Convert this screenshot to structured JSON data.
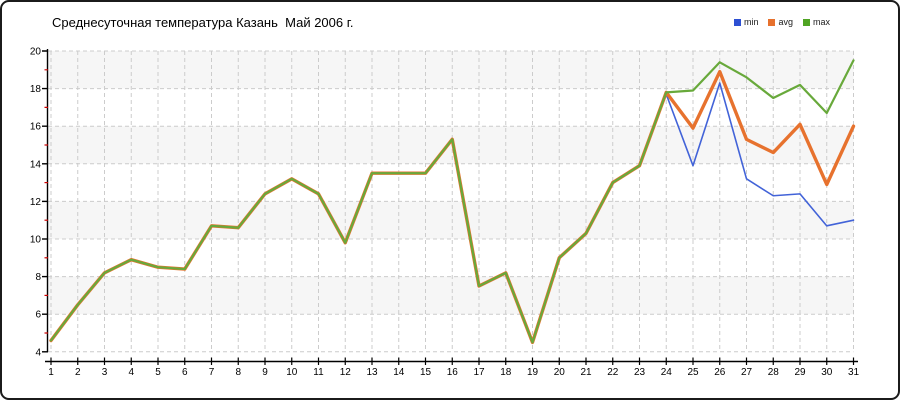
{
  "title": "Среднесуточная температура Казань  Май 2006 г.",
  "legend": [
    {
      "label": "min",
      "color": "#2d50d3"
    },
    {
      "label": "avg",
      "color": "#e7712d"
    },
    {
      "label": "max",
      "color": "#4fa423"
    }
  ],
  "colors": {
    "plot_band": "#f6f6f6",
    "gridline": "#cccccc",
    "axis": "#000000",
    "minor_tick": "#cc0000",
    "border": "#1b1b1b"
  },
  "chart_data": {
    "type": "line",
    "title": "Среднесуточная температура Казань  Май 2006 г.",
    "xlabel": "",
    "ylabel": "",
    "x": [
      1,
      2,
      3,
      4,
      5,
      6,
      7,
      8,
      9,
      10,
      11,
      12,
      13,
      14,
      15,
      16,
      17,
      18,
      19,
      20,
      21,
      22,
      23,
      24,
      25,
      26,
      27,
      28,
      29,
      30,
      31
    ],
    "ylim": [
      4,
      20
    ],
    "ytick_step": 2,
    "grid": true,
    "legend_position": "top-right",
    "series": [
      {
        "name": "min",
        "color": "#4263d8",
        "width": 1.6,
        "values": [
          4.6,
          6.5,
          8.2,
          8.9,
          8.5,
          8.4,
          10.7,
          10.6,
          12.4,
          13.2,
          12.4,
          9.8,
          13.5,
          13.5,
          13.5,
          15.3,
          7.5,
          8.2,
          4.5,
          9.0,
          10.3,
          13.0,
          13.9,
          17.7,
          13.9,
          18.3,
          13.2,
          12.3,
          12.4,
          10.7,
          11.0
        ]
      },
      {
        "name": "avg",
        "color": "#e7722e",
        "width": 3.4,
        "values": [
          4.6,
          6.5,
          8.2,
          8.9,
          8.5,
          8.4,
          10.7,
          10.6,
          12.4,
          13.2,
          12.4,
          9.8,
          13.5,
          13.5,
          13.5,
          15.3,
          7.5,
          8.2,
          4.5,
          9.0,
          10.3,
          13.0,
          13.9,
          17.8,
          15.9,
          18.9,
          15.3,
          14.6,
          16.1,
          12.9,
          16.0
        ]
      },
      {
        "name": "max",
        "color": "#68a93b",
        "width": 2.2,
        "values": [
          4.6,
          6.5,
          8.2,
          8.9,
          8.5,
          8.4,
          10.7,
          10.6,
          12.4,
          13.2,
          12.4,
          9.8,
          13.5,
          13.5,
          13.5,
          15.3,
          7.5,
          8.2,
          4.5,
          9.0,
          10.3,
          13.0,
          13.9,
          17.8,
          17.9,
          19.4,
          18.6,
          17.5,
          18.2,
          16.7,
          19.5
        ]
      }
    ]
  }
}
